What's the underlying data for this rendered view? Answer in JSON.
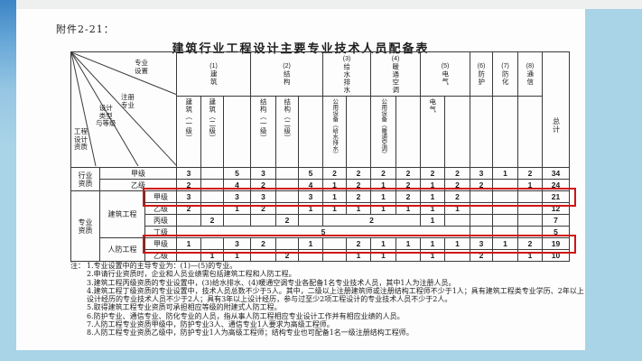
{
  "page": {
    "attachment_label": "附件2-21：",
    "title": "建筑行业工程设计主要专业技术人员配备表"
  },
  "table": {
    "corner": {
      "top_right": "专业\n设置",
      "mid": "注册\n专业",
      "lower": "设计\n类型\n与等级",
      "bottom_left": "工程\n设计\n资质"
    },
    "groups": [
      {
        "num": "(1)",
        "name": "建筑"
      },
      {
        "num": "(2)",
        "name": "结构"
      },
      {
        "num": "(3)",
        "name": "给水排水"
      },
      {
        "num": "(4)",
        "name": "暖通空调"
      },
      {
        "num": "(5)",
        "name": "电气"
      },
      {
        "num": "(6)",
        "name": "防护"
      },
      {
        "num": "(7)",
        "name": "防化"
      },
      {
        "num": "(8)",
        "name": "通信"
      }
    ],
    "total_label": "总计",
    "subheads": [
      "建筑（一级）",
      "建筑（二级）",
      "",
      "结构（一级）",
      "结构（二级）",
      "",
      "公用设备（给水排水）",
      "",
      "公用设备（暖通空调）",
      "",
      "电气",
      ""
    ],
    "row_groups": {
      "industry": "行业\n资质",
      "professional": "专业\n资质",
      "building": "建筑工程",
      "civil_defense": "人防工程"
    },
    "grades": {
      "jia": "甲级",
      "yi": "乙级",
      "bing": "丙级",
      "ding": "丁级"
    },
    "rows": [
      {
        "cells": [
          "3",
          "",
          "5",
          "3",
          "",
          "5",
          "2",
          "2",
          "2",
          "2",
          "2",
          "2",
          "3",
          "1",
          "2",
          "34"
        ]
      },
      {
        "cells": [
          "2",
          "",
          "4",
          "2",
          "",
          "4",
          "1",
          "2",
          "1",
          "2",
          "1",
          "2",
          "2",
          "",
          "1",
          "24"
        ]
      },
      {
        "cells": [
          "3",
          "",
          "3",
          "3",
          "",
          "3",
          "1",
          "2",
          "1",
          "2",
          "1",
          "2",
          "",
          "",
          "",
          "21"
        ]
      },
      {
        "cells": [
          "2",
          "",
          "1",
          "2",
          "",
          "1",
          "1",
          "1",
          "1",
          "1",
          "1",
          "1",
          "",
          "",
          "",
          "12"
        ]
      },
      {
        "cells": [
          "",
          "2",
          "",
          "",
          "2",
          "",
          "2",
          "1",
          "",
          "",
          "",
          "",
          "7"
        ]
      },
      {
        "cells": [
          "5",
          "",
          "",
          "",
          "5"
        ]
      },
      {
        "cells": [
          "1",
          "",
          "3",
          "2",
          "",
          "1",
          "",
          "2",
          "1",
          "1",
          "1",
          "1",
          "3",
          "1",
          "2",
          "19"
        ]
      },
      {
        "cells": [
          "",
          "1",
          "1",
          "",
          "2",
          "",
          "",
          "1",
          "1",
          "",
          "1",
          "",
          "2",
          "",
          "1",
          "10"
        ]
      }
    ]
  },
  "notes": {
    "prefix": "注：",
    "items": [
      "1.专业设置中的主导专业为：(1)—(5)的专业。",
      "2.申请行业资质时，企业和人员业绩需包括建筑工程和人防工程。",
      "3.建筑工程丙级资质的专业设置中，(3)给水排水、(4)暖通空调专业各配备1名专业技术人员，其中1人为注册人员。",
      "4.建筑工程丁级资质的专业设置中，技术人员总数不少于5人。其中，二级以上注册建筑师或注册结构工程师不少于1人；具有建筑工程类专业学历、2年以上设计经历的专业技术人员不少于2人；具有3年以上设计经历，参与过至少2项工程设计的专业技术人员不少于2人。",
      "5.取得建筑工程专业资质可承担相应等级的附建式人防工程。",
      "6.防护专业、通信专业、防化专业的人员，指从事人防工程相应专业设计工作并有相应业绩的人员。",
      "7.人防工程专业资质甲级中，防护专业3人、通信专业1人要求为高级工程师。",
      "8.人防工程专业资质乙级中，防护专业1人为高级工程师；结构专业也可配备1名一级注册结构工程师。"
    ]
  },
  "colors": {
    "highlight_box": "#cf1414",
    "screen_background": "#a9d3e7",
    "page_background": "#fdfdfd",
    "left_bar_top": "#3c85c6"
  }
}
